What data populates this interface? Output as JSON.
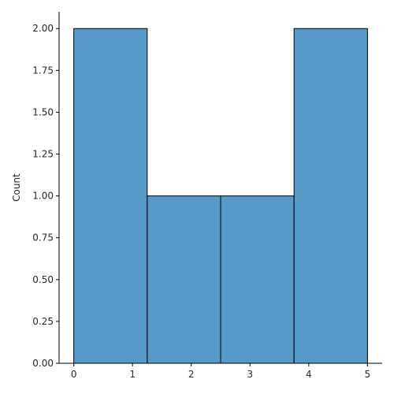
{
  "chart_data": {
    "type": "bar",
    "title": "",
    "xlabel": "",
    "ylabel": "Count",
    "bins": [
      {
        "x0": 0,
        "x1": 1.25,
        "count": 2
      },
      {
        "x0": 1.25,
        "x1": 2.5,
        "count": 1
      },
      {
        "x0": 2.5,
        "x1": 3.75,
        "count": 1
      },
      {
        "x0": 3.75,
        "x1": 5,
        "count": 2
      }
    ],
    "xlim": [
      -0.25,
      5.25
    ],
    "ylim": [
      0,
      2.1
    ],
    "xticks": [
      0,
      1,
      2,
      3,
      4,
      5
    ],
    "xtick_labels": [
      "0",
      "1",
      "2",
      "3",
      "4",
      "5"
    ],
    "yticks": [
      0,
      0.25,
      0.5,
      0.75,
      1.0,
      1.25,
      1.5,
      1.75,
      2.0
    ],
    "ytick_labels": [
      "0.00",
      "0.25",
      "0.50",
      "0.75",
      "1.00",
      "1.25",
      "1.50",
      "1.75",
      "2.00"
    ],
    "bar_color": "#5799c7",
    "edge_color": "#000000",
    "grid": false
  }
}
